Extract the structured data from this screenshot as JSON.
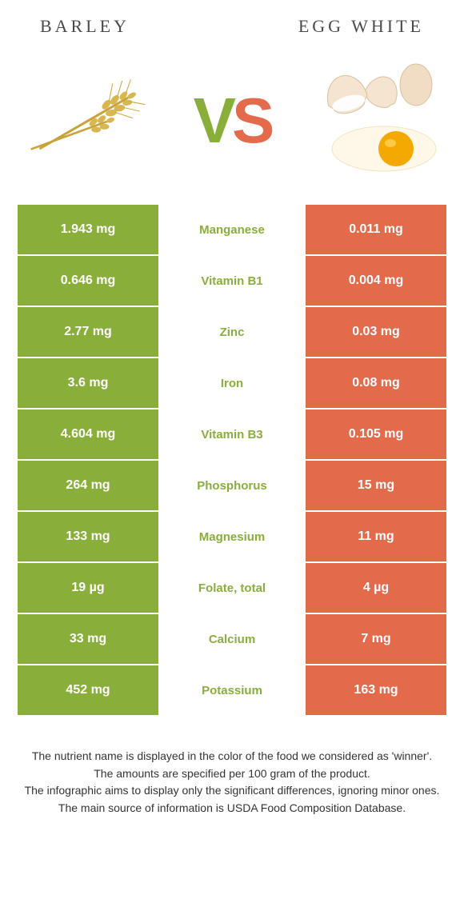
{
  "header": {
    "left_title": "BARLEY",
    "right_title": "EGG WHITE"
  },
  "vs": {
    "v": "V",
    "s": "S"
  },
  "colors": {
    "left": "#8aae3a",
    "right": "#e36a4a",
    "text": "#333333",
    "background": "#ffffff"
  },
  "rows": [
    {
      "left": "1.943 mg",
      "name": "Manganese",
      "right": "0.011 mg",
      "winner": "left"
    },
    {
      "left": "0.646 mg",
      "name": "Vitamin B1",
      "right": "0.004 mg",
      "winner": "left"
    },
    {
      "left": "2.77 mg",
      "name": "Zinc",
      "right": "0.03 mg",
      "winner": "left"
    },
    {
      "left": "3.6 mg",
      "name": "Iron",
      "right": "0.08 mg",
      "winner": "left"
    },
    {
      "left": "4.604 mg",
      "name": "Vitamin B3",
      "right": "0.105 mg",
      "winner": "left"
    },
    {
      "left": "264 mg",
      "name": "Phosphorus",
      "right": "15 mg",
      "winner": "left"
    },
    {
      "left": "133 mg",
      "name": "Magnesium",
      "right": "11 mg",
      "winner": "left"
    },
    {
      "left": "19 µg",
      "name": "Folate, total",
      "right": "4 µg",
      "winner": "left"
    },
    {
      "left": "33 mg",
      "name": "Calcium",
      "right": "7 mg",
      "winner": "left"
    },
    {
      "left": "452 mg",
      "name": "Potassium",
      "right": "163 mg",
      "winner": "left"
    }
  ],
  "footer": {
    "line1": "The nutrient name is displayed in the color of the food we considered as 'winner'.",
    "line2": "The amounts are specified per 100 gram of the product.",
    "line3": "The infographic aims to display only the significant differences, ignoring minor ones.",
    "line4": "The main source of information is USDA Food Composition Database."
  }
}
